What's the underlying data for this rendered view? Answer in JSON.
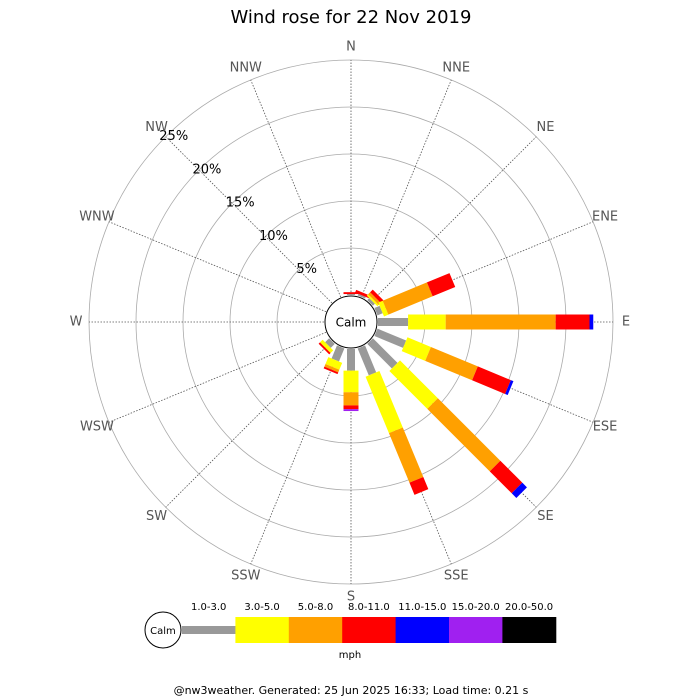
{
  "chart_data": {
    "type": "windrose",
    "title": "Wind rose for 22 Nov 2019",
    "calm_label": "Calm",
    "categories": [
      "N",
      "NNE",
      "NE",
      "ENE",
      "E",
      "ESE",
      "SE",
      "SSE",
      "S",
      "SSW",
      "SW",
      "WSW",
      "W",
      "WNW",
      "NW",
      "NNW"
    ],
    "ylim": [
      0,
      25
    ],
    "yticks": [
      {
        "value": 5,
        "label": "5%"
      },
      {
        "value": 10,
        "label": "10%"
      },
      {
        "value": 15,
        "label": "15%"
      },
      {
        "value": 20,
        "label": "20%"
      },
      {
        "value": 25,
        "label": "25%"
      }
    ],
    "legend_title": "mph",
    "series": [
      {
        "name": "1.0-3.0",
        "color": "#999999",
        "values": [
          0.1,
          0.2,
          0.3,
          0.6,
          3.2,
          3.3,
          3.7,
          3.1,
          2.3,
          1.5,
          0.6,
          0,
          0,
          0,
          0,
          0
        ]
      },
      {
        "name": "3.0-5.0",
        "color": "#ffff00",
        "values": [
          0,
          0,
          0.2,
          0.5,
          4.0,
          2.7,
          5.7,
          6.5,
          2.3,
          0.8,
          0.4,
          0,
          0,
          0,
          0,
          0
        ]
      },
      {
        "name": "5.0-8.0",
        "color": "#ffa000",
        "values": [
          0,
          0,
          0.3,
          5.1,
          11.7,
          5.4,
          9.4,
          5.7,
          1.4,
          0.3,
          0,
          0,
          0,
          0,
          0,
          0
        ]
      },
      {
        "name": "8.0-11.0",
        "color": "#ff0000",
        "values": [
          0.2,
          0.3,
          0.4,
          2.6,
          3.6,
          3.8,
          3.3,
          1.4,
          0.4,
          0.2,
          0.2,
          0,
          0,
          0,
          0,
          0
        ]
      },
      {
        "name": "11.0-15.0",
        "color": "#0000ff",
        "values": [
          0,
          0,
          0,
          0,
          0.4,
          0.3,
          0.7,
          0,
          0,
          0,
          0,
          0,
          0,
          0,
          0,
          0
        ]
      },
      {
        "name": "15.0-20.0",
        "color": "#a020f0",
        "values": [
          0,
          0,
          0,
          0,
          0,
          0,
          0,
          0,
          0.2,
          0,
          0,
          0,
          0,
          0,
          0,
          0
        ]
      },
      {
        "name": "20.0-50.0",
        "color": "#000000",
        "values": [
          0,
          0,
          0,
          0,
          0,
          0,
          0,
          0,
          0,
          0,
          0,
          0,
          0,
          0,
          0,
          0
        ]
      }
    ],
    "footer": "@nw3weather. Generated: 25 Jun 2025 16:33; Load time: 0.21 s"
  }
}
